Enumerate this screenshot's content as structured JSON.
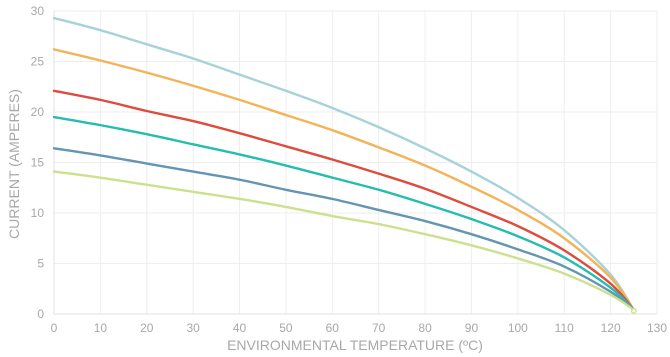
{
  "chart_data": {
    "type": "line",
    "title": "",
    "xlabel": "ENVIRONMENTAL TEMPERATURE (ºC)",
    "ylabel": "CURRENT (AMPERES)",
    "xlim": [
      0,
      130
    ],
    "ylim": [
      0,
      30
    ],
    "xticks": [
      0,
      10,
      20,
      30,
      40,
      50,
      60,
      70,
      80,
      90,
      100,
      110,
      120,
      130
    ],
    "yticks": [
      0,
      5,
      10,
      15,
      20,
      25,
      30
    ],
    "grid": true,
    "legend": "none",
    "x": [
      0,
      10,
      20,
      30,
      40,
      50,
      60,
      70,
      80,
      90,
      100,
      110,
      120,
      125
    ],
    "series": [
      {
        "color": "#a6d3d9",
        "values": [
          29.3,
          28.1,
          26.7,
          25.3,
          23.7,
          22.1,
          20.4,
          18.5,
          16.4,
          14.1,
          11.5,
          8.3,
          3.9,
          0.4
        ]
      },
      {
        "color": "#f2b457",
        "values": [
          26.2,
          25.1,
          23.9,
          22.6,
          21.2,
          19.7,
          18.2,
          16.5,
          14.7,
          12.6,
          10.3,
          7.5,
          3.6,
          0.4
        ]
      },
      {
        "color": "#dd4c3d",
        "values": [
          22.1,
          21.2,
          20.1,
          19.1,
          17.9,
          16.6,
          15.3,
          13.9,
          12.4,
          10.6,
          8.7,
          6.3,
          3.0,
          0.4
        ]
      },
      {
        "color": "#25bdb0",
        "values": [
          19.5,
          18.7,
          17.8,
          16.8,
          15.8,
          14.7,
          13.5,
          12.3,
          10.9,
          9.4,
          7.7,
          5.6,
          2.6,
          0.4
        ]
      },
      {
        "color": "#6495b2",
        "values": [
          16.4,
          15.7,
          14.9,
          14.1,
          13.3,
          12.3,
          11.4,
          10.3,
          9.2,
          7.9,
          6.4,
          4.7,
          2.2,
          0.4
        ]
      },
      {
        "color": "#cde08e",
        "values": [
          14.1,
          13.5,
          12.8,
          12.1,
          11.4,
          10.6,
          9.7,
          8.9,
          7.9,
          6.8,
          5.5,
          4.0,
          1.9,
          0.4
        ]
      }
    ]
  }
}
